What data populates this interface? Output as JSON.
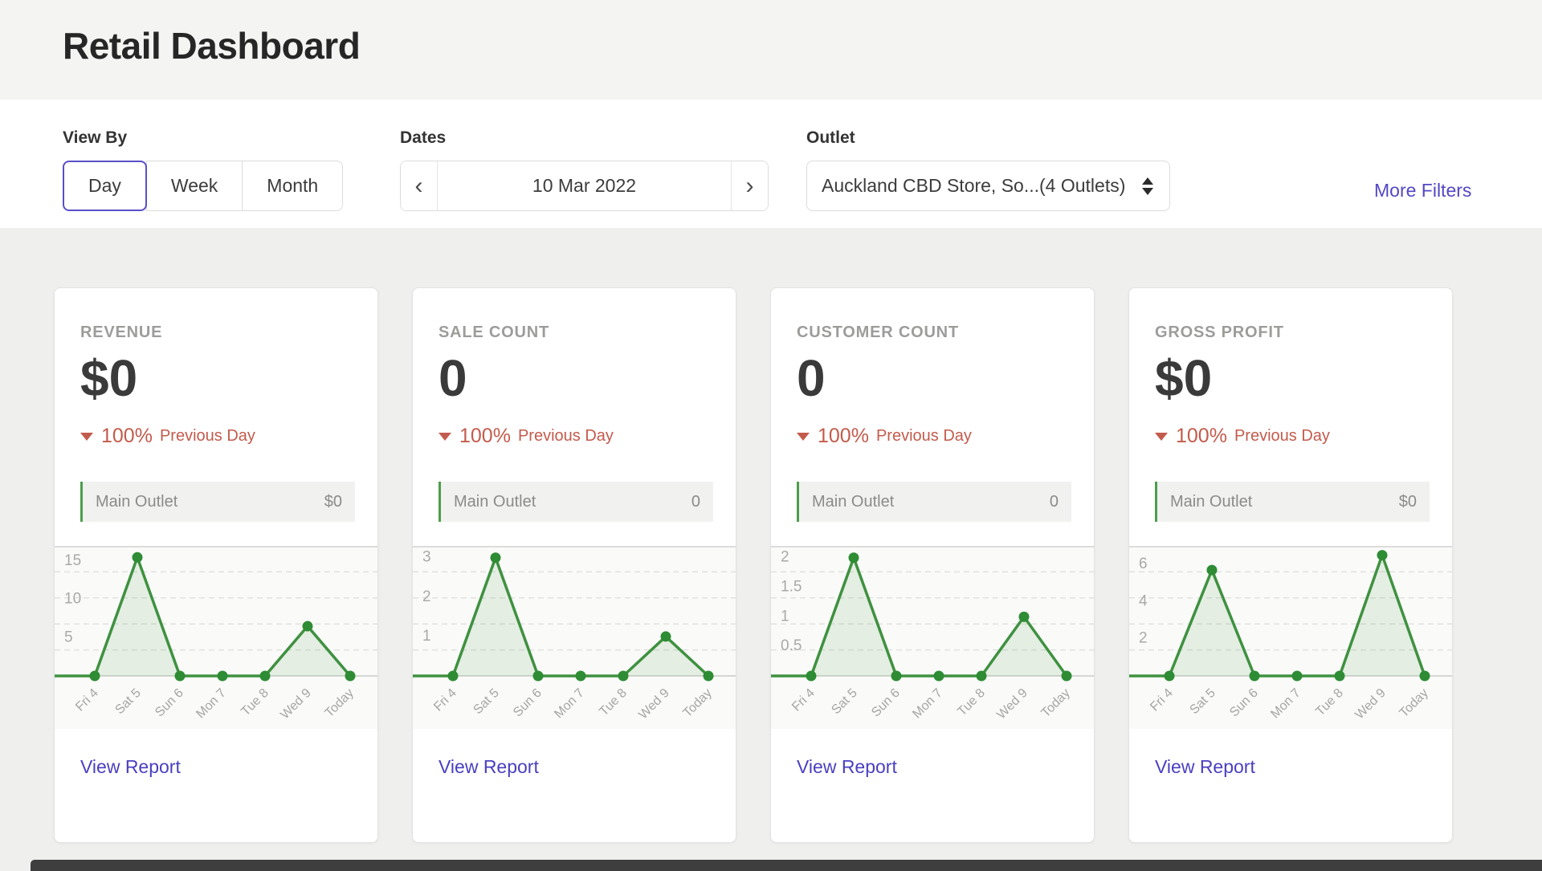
{
  "page": {
    "title": "Retail Dashboard"
  },
  "colors": {
    "accent_purple": "#5347c5",
    "chart_green": "#3f9140",
    "negative_red": "#c35b4c"
  },
  "filters": {
    "view_by": {
      "label": "View By",
      "options": [
        "Day",
        "Week",
        "Month"
      ],
      "selected": "Day"
    },
    "dates": {
      "label": "Dates",
      "value": "10 Mar 2022",
      "prev_icon": "‹",
      "next_icon": "›"
    },
    "outlet": {
      "label": "Outlet",
      "value": "Auckland CBD Store, So...(4 Outlets)"
    },
    "more_filters": "More Filters"
  },
  "cards": [
    {
      "title": "REVENUE",
      "value": "$0",
      "change": "100%",
      "change_period": "Previous Day",
      "outlet_name": "Main Outlet",
      "outlet_value": "$0",
      "view_report": "View Report"
    },
    {
      "title": "SALE COUNT",
      "value": "0",
      "change": "100%",
      "change_period": "Previous Day",
      "outlet_name": "Main Outlet",
      "outlet_value": "0",
      "view_report": "View Report"
    },
    {
      "title": "CUSTOMER COUNT",
      "value": "0",
      "change": "100%",
      "change_period": "Previous Day",
      "outlet_name": "Main Outlet",
      "outlet_value": "0",
      "view_report": "View Report"
    },
    {
      "title": "GROSS PROFIT",
      "value": "$0",
      "change": "100%",
      "change_period": "Previous Day",
      "outlet_name": "Main Outlet",
      "outlet_value": "$0",
      "view_report": "View Report"
    }
  ],
  "chart_data": [
    {
      "type": "area",
      "title": "Revenue last 7 days",
      "categories": [
        "Fri 4",
        "Sat 5",
        "Sun 6",
        "Mon 7",
        "Tue 8",
        "Wed 9",
        "Today"
      ],
      "values": [
        0,
        15.5,
        0,
        0,
        0,
        6.5,
        0
      ],
      "yticks": [
        15,
        10,
        5
      ],
      "ylim": [
        0,
        17
      ],
      "xlabel": "",
      "ylabel": "",
      "grid": "dashed",
      "legend": "none"
    },
    {
      "type": "area",
      "title": "Sale count last 7 days",
      "categories": [
        "Fri 4",
        "Sat 5",
        "Sun 6",
        "Mon 7",
        "Tue 8",
        "Wed 9",
        "Today"
      ],
      "values": [
        0,
        3,
        0,
        0,
        0,
        1,
        0
      ],
      "yticks": [
        3,
        2,
        1
      ],
      "ylim": [
        0,
        3.3
      ],
      "xlabel": "",
      "ylabel": "",
      "grid": "dashed",
      "legend": "none"
    },
    {
      "type": "area",
      "title": "Customer count last 7 days",
      "categories": [
        "Fri 4",
        "Sat 5",
        "Sun 6",
        "Mon 7",
        "Tue 8",
        "Wed 9",
        "Today"
      ],
      "values": [
        0,
        2,
        0,
        0,
        0,
        1,
        0
      ],
      "yticks": [
        2,
        1.5,
        1,
        0.5
      ],
      "ylim": [
        0,
        2.2
      ],
      "xlabel": "",
      "ylabel": "",
      "grid": "dashed",
      "legend": "none"
    },
    {
      "type": "area",
      "title": "Gross profit last 7 days",
      "categories": [
        "Fri 4",
        "Sat 5",
        "Sun 6",
        "Mon 7",
        "Tue 8",
        "Wed 9",
        "Today"
      ],
      "values": [
        0,
        5.7,
        0,
        0,
        0,
        6.5,
        0
      ],
      "yticks": [
        6,
        4,
        2
      ],
      "ylim": [
        0,
        7
      ],
      "xlabel": "",
      "ylabel": "",
      "grid": "dashed",
      "legend": "none"
    }
  ]
}
